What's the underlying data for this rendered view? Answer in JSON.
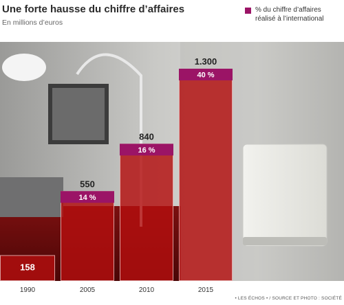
{
  "header": {
    "title": "Une forte hausse du chiffre d’affaires",
    "subtitle": "En millions d’euros"
  },
  "legend": {
    "label": "% du chiffre d’affaires réalisé à l’international",
    "color": "#9b1466"
  },
  "chart_data": {
    "type": "bar",
    "title": "Une forte hausse du chiffre d’affaires",
    "subtitle": "En millions d’euros",
    "categories": [
      "1990",
      "2005",
      "2010",
      "2015"
    ],
    "series": [
      {
        "name": "",
        "values": [
          158,
          550,
          840,
          1300
        ],
        "value_labels": [
          "158",
          "550",
          "840",
          "1.300"
        ],
        "color": "#b30f0f"
      },
      {
        "name": "% du chiffre d’affaires réalisé à l’international",
        "values": [
          null,
          14,
          16,
          40
        ],
        "value_labels": [
          "",
          "14 %",
          "16 %",
          "40 %"
        ],
        "color": "#9b1466"
      }
    ],
    "ylim": [
      0,
      1300
    ],
    "grid": false,
    "legend_position": "top-right"
  },
  "credit": "• LES ÉCHOS • / SOURCE ET PHOTO : SOCIÉTÉ"
}
